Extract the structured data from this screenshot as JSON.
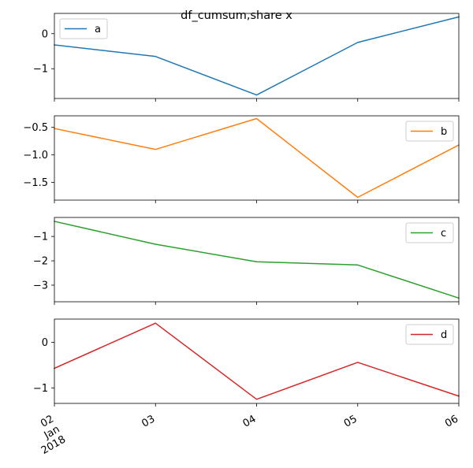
{
  "chart_data": {
    "type": "line",
    "title": "df_cumsum,share x",
    "x": [
      "2018-01-02",
      "2018-01-03",
      "2018-01-04",
      "2018-01-05",
      "2018-01-06"
    ],
    "x_tick_labels": [
      {
        "lines": [
          "02",
          "Jan",
          "2018"
        ]
      },
      {
        "lines": [
          "03"
        ]
      },
      {
        "lines": [
          "04"
        ]
      },
      {
        "lines": [
          "05"
        ]
      },
      {
        "lines": [
          "06"
        ]
      }
    ],
    "shared_x": true,
    "grid": false,
    "legend_position": "each subplot",
    "subplots": [
      {
        "series": {
          "name": "a",
          "color": "#1f77b4",
          "values": [
            -0.32,
            -0.65,
            -1.75,
            -0.25,
            0.48
          ]
        },
        "ylim": [
          -1.85,
          0.58
        ],
        "yticks": [
          {
            "value": -1,
            "label": "−1"
          },
          {
            "value": 0,
            "label": "0"
          }
        ],
        "legend": "top-left"
      },
      {
        "series": {
          "name": "b",
          "color": "#ff7f0e",
          "values": [
            -0.52,
            -0.9,
            -0.34,
            -1.77,
            -0.82
          ]
        },
        "ylim": [
          -1.82,
          -0.29
        ],
        "yticks": [
          {
            "value": -1.5,
            "label": "−1.5"
          },
          {
            "value": -1.0,
            "label": "−1.0"
          },
          {
            "value": -0.5,
            "label": "−0.5"
          }
        ],
        "legend": "top-right"
      },
      {
        "series": {
          "name": "c",
          "color": "#2ca02c",
          "values": [
            -0.38,
            -1.32,
            -2.04,
            -2.17,
            -3.53
          ]
        },
        "ylim": [
          -3.68,
          -0.22
        ],
        "yticks": [
          {
            "value": -3,
            "label": "−3"
          },
          {
            "value": -2,
            "label": "−2"
          },
          {
            "value": -1,
            "label": "−1"
          }
        ],
        "legend": "top-right"
      },
      {
        "series": {
          "name": "d",
          "color": "#d62728",
          "values": [
            -0.57,
            0.42,
            -1.25,
            -0.44,
            -1.18
          ]
        },
        "ylim": [
          -1.34,
          0.51
        ],
        "yticks": [
          {
            "value": -1,
            "label": "−1"
          },
          {
            "value": 0,
            "label": "0"
          }
        ],
        "legend": "top-right"
      }
    ]
  }
}
